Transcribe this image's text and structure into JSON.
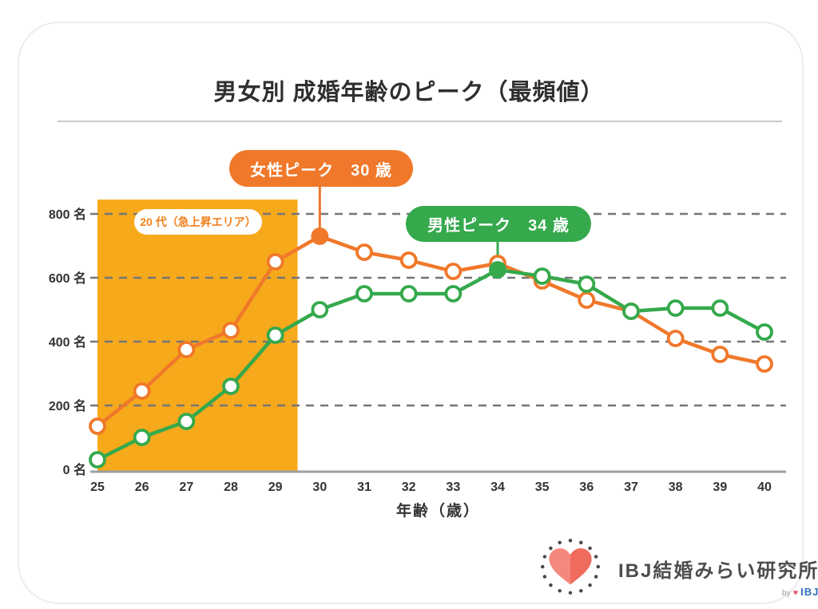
{
  "header": {
    "title": "男女別 成婚年齢のピーク（最頻値）"
  },
  "chart_data": {
    "type": "line",
    "x": [
      25,
      26,
      27,
      28,
      29,
      30,
      31,
      32,
      33,
      34,
      35,
      36,
      37,
      38,
      39,
      40
    ],
    "xlabel": "年齢（歳）",
    "ylim": [
      0,
      850
    ],
    "grid": true,
    "legend_position": "none",
    "ytick_values": [
      0,
      200,
      400,
      600,
      800
    ],
    "ytick_labels": [
      "0 名",
      "200 名",
      "400 名",
      "600 名",
      "800 名"
    ],
    "series": [
      {
        "name": "女性",
        "color": "#F0782A",
        "values": [
          135,
          245,
          375,
          435,
          650,
          730,
          680,
          655,
          620,
          645,
          590,
          530,
          495,
          410,
          360,
          330
        ],
        "peak_age": 30,
        "peak_value": 730
      },
      {
        "name": "男性",
        "color": "#35A94C",
        "values": [
          30,
          100,
          150,
          260,
          420,
          500,
          550,
          550,
          550,
          625,
          605,
          580,
          495,
          505,
          505,
          430
        ],
        "peak_age": 34,
        "peak_value": 625
      }
    ],
    "highlight_area": {
      "x_from": 25,
      "x_to": 29.5,
      "color": "#F7A91C",
      "label": "20 代（急上昇エリア）",
      "label_color": "#F0811C"
    }
  },
  "annotations": {
    "female_peak": {
      "label": "女性ピーク　30 歳"
    },
    "male_peak": {
      "label": "男性ピーク　34 歳"
    }
  },
  "footer": {
    "brand": "IBJ結婚みらい研究所",
    "byline": "by",
    "byline_brand": "IBJ",
    "heart_color_light": "#F5887C",
    "heart_color_dark": "#EF6B5E",
    "byline_heart_color": "#E05C72",
    "brand_blue": "#2E6FB7"
  },
  "colors": {
    "grid": "#757575",
    "axis": "#9AA0A6",
    "text": "#333333",
    "card_border": "#ECECEC"
  }
}
